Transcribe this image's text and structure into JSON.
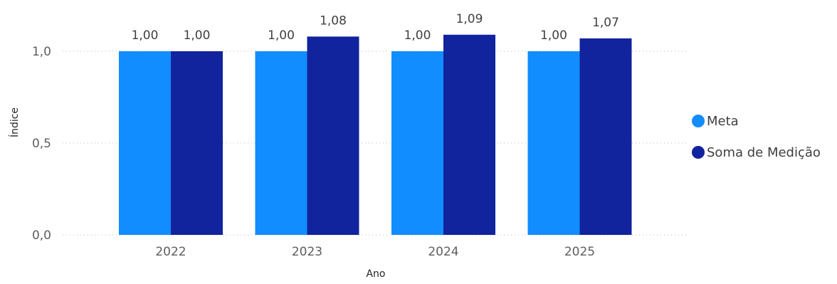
{
  "chart_data": {
    "type": "bar",
    "categories": [
      "2022",
      "2023",
      "2024",
      "2025"
    ],
    "series": [
      {
        "name": "Meta",
        "values": [
          1.0,
          1.0,
          1.0,
          1.0
        ],
        "labels": [
          "1,00",
          "1,00",
          "1,00",
          "1,00"
        ],
        "color": "#118DFF"
      },
      {
        "name": "Soma de Medição",
        "values": [
          1.0,
          1.08,
          1.09,
          1.07
        ],
        "labels": [
          "1,00",
          "1,08",
          "1,09",
          "1,07"
        ],
        "color": "#12239E"
      }
    ],
    "title": "",
    "xlabel": "Ano",
    "ylabel": "Índice",
    "ylim": [
      0,
      1
    ],
    "yticks": [
      0,
      0.5,
      1.0
    ],
    "ytick_labels": [
      "0,0",
      "0,5",
      "1,0"
    ],
    "grid": true,
    "legend_position": "right"
  }
}
